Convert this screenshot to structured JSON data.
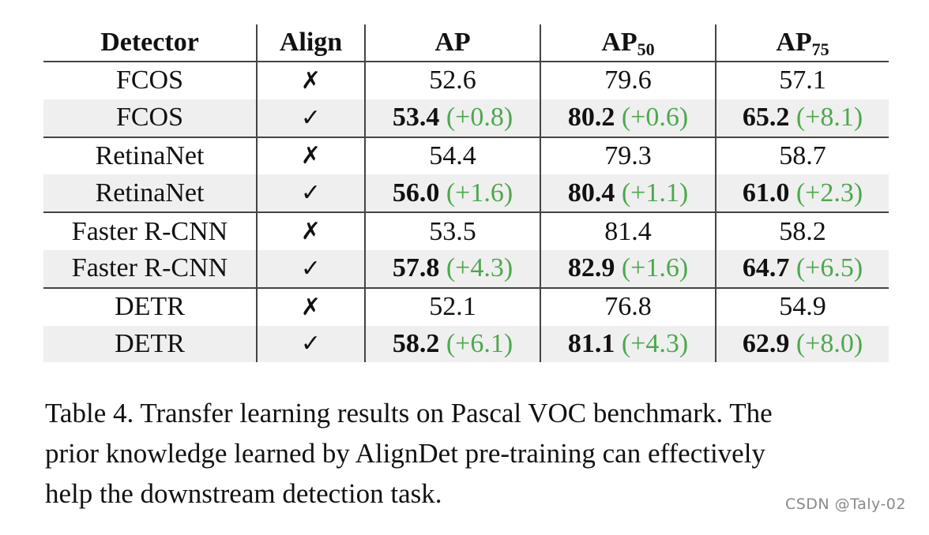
{
  "table": {
    "headers": {
      "detector": "Detector",
      "align": "Align",
      "ap": "AP",
      "ap50_base": "AP",
      "ap50_sub": "50",
      "ap75_base": "AP",
      "ap75_sub": "75"
    },
    "rows": [
      {
        "detector": "FCOS",
        "align": "✗",
        "aligned": false,
        "ap": "52.6",
        "ap_delta": "",
        "ap50": "79.6",
        "ap50_delta": "",
        "ap75": "57.1",
        "ap75_delta": ""
      },
      {
        "detector": "FCOS",
        "align": "✓",
        "aligned": true,
        "ap": "53.4",
        "ap_delta": "(+0.8)",
        "ap50": "80.2",
        "ap50_delta": "(+0.6)",
        "ap75": "65.2",
        "ap75_delta": "(+8.1)"
      },
      {
        "detector": "RetinaNet",
        "align": "✗",
        "aligned": false,
        "ap": "54.4",
        "ap_delta": "",
        "ap50": "79.3",
        "ap50_delta": "",
        "ap75": "58.7",
        "ap75_delta": ""
      },
      {
        "detector": "RetinaNet",
        "align": "✓",
        "aligned": true,
        "ap": "56.0",
        "ap_delta": "(+1.6)",
        "ap50": "80.4",
        "ap50_delta": "(+1.1)",
        "ap75": "61.0",
        "ap75_delta": "(+2.3)"
      },
      {
        "detector": "Faster R-CNN",
        "align": "✗",
        "aligned": false,
        "ap": "53.5",
        "ap_delta": "",
        "ap50": "81.4",
        "ap50_delta": "",
        "ap75": "58.2",
        "ap75_delta": ""
      },
      {
        "detector": "Faster R-CNN",
        "align": "✓",
        "aligned": true,
        "ap": "57.8",
        "ap_delta": "(+4.3)",
        "ap50": "82.9",
        "ap50_delta": "(+1.6)",
        "ap75": "64.7",
        "ap75_delta": "(+6.5)"
      },
      {
        "detector": "DETR",
        "align": "✗",
        "aligned": false,
        "ap": "52.1",
        "ap_delta": "",
        "ap50": "76.8",
        "ap50_delta": "",
        "ap75": "54.9",
        "ap75_delta": ""
      },
      {
        "detector": "DETR",
        "align": "✓",
        "aligned": true,
        "ap": "58.2",
        "ap_delta": "(+6.1)",
        "ap50": "81.1",
        "ap50_delta": "(+4.3)",
        "ap75": "62.9",
        "ap75_delta": "(+8.0)"
      }
    ]
  },
  "caption": {
    "line1": "Table 4. Transfer learning results on Pascal VOC benchmark. The",
    "line2": "prior knowledge learned by AlignDet pre-training can effectively",
    "line3": "help the downstream detection task."
  },
  "watermark": "CSDN @Taly-02",
  "colors": {
    "delta_green": "#4da84d",
    "aligned_row_bg": "#efefef",
    "rule": "#444444"
  }
}
